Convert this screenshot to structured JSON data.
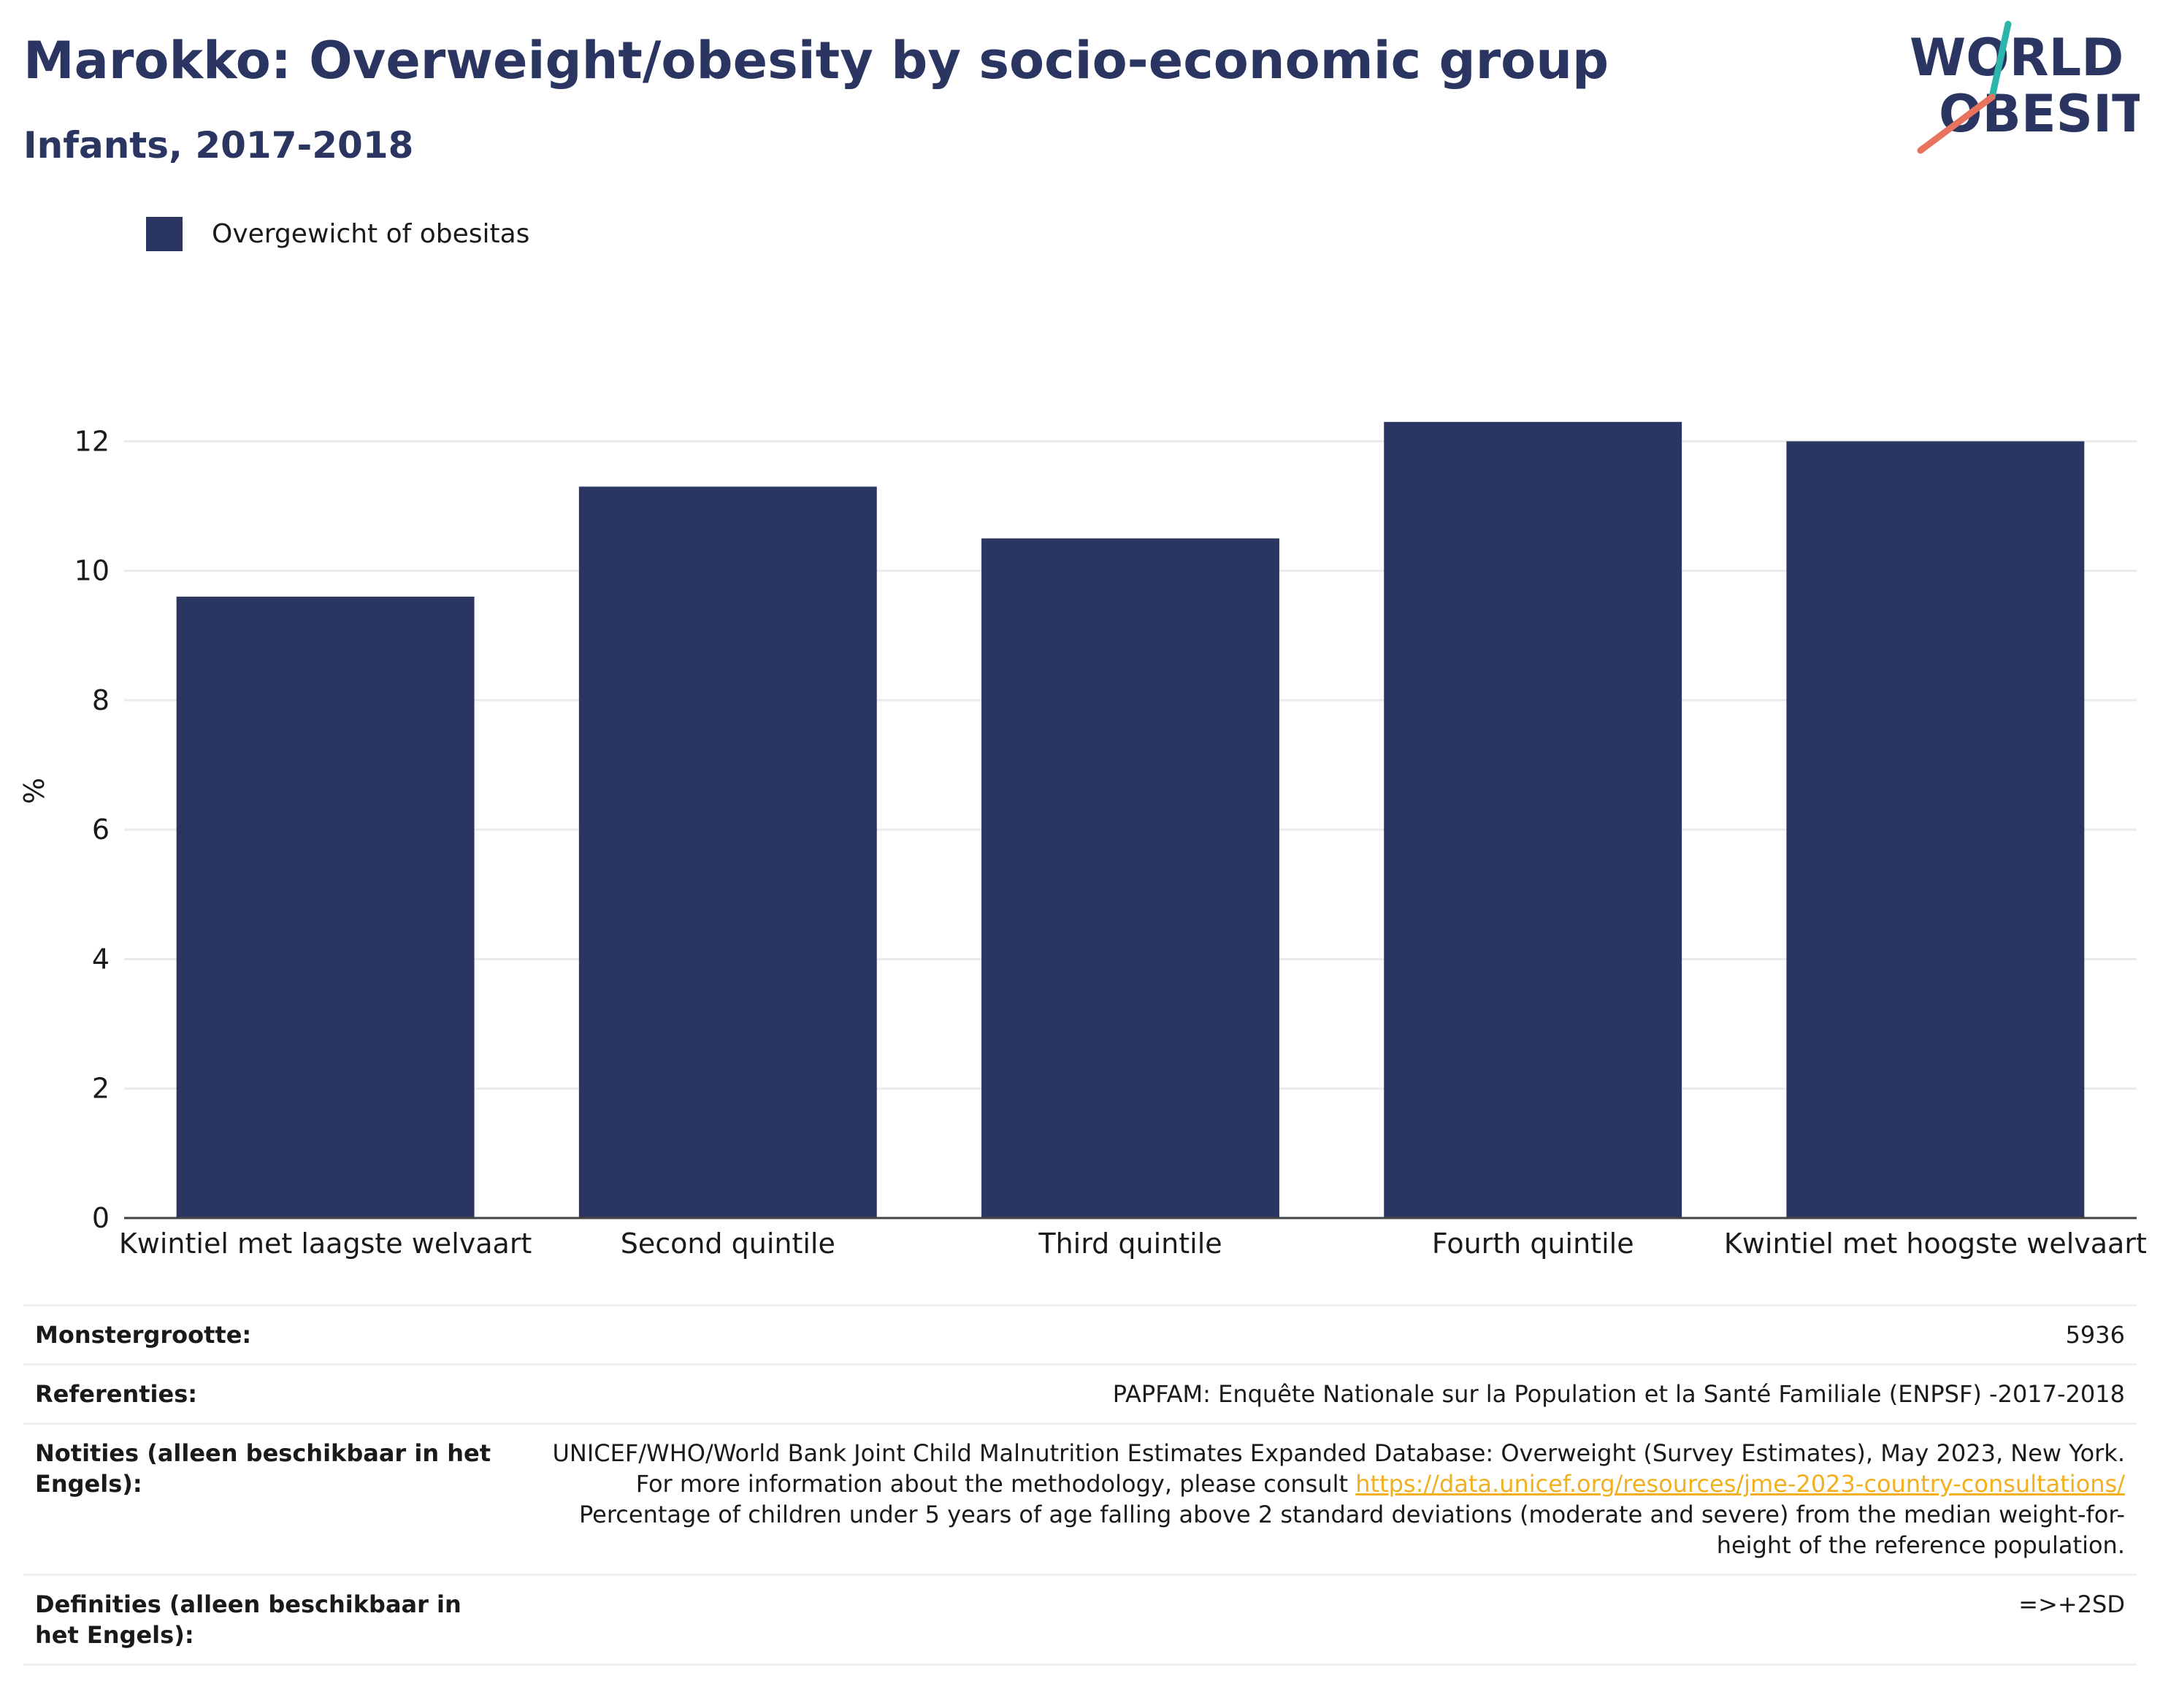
{
  "header": {
    "title": "Marokko: Overweight/obesity by socio-economic group",
    "subtitle": "Infants, 2017-2018"
  },
  "logo": {
    "line1": "WORLD",
    "line2": "OBESITY"
  },
  "colors": {
    "bar": "#2a3561",
    "title": "#2a3561",
    "link": "#f2b01e",
    "logo_teal": "#2bb5ad",
    "logo_coral": "#e8735f"
  },
  "chart_data": {
    "type": "bar",
    "categories": [
      "Kwintiel met laagste welvaart",
      "Second quintile",
      "Third quintile",
      "Fourth quintile",
      "Kwintiel met hoogste welvaart"
    ],
    "series": [
      {
        "name": "Overgewicht of obesitas",
        "values": [
          9.6,
          11.3,
          10.5,
          12.3,
          12.0
        ]
      }
    ],
    "ylabel": "%",
    "xlabel": "",
    "ylim": [
      0,
      13.2
    ],
    "yticks": [
      0,
      2,
      4,
      6,
      8,
      10,
      12
    ],
    "grid": true,
    "legend_position": "top-left"
  },
  "info": {
    "sample_size_label": "Monstergrootte:",
    "sample_size_value": "5936",
    "references_label": "Referenties:",
    "references_value": "PAPFAM: Enquête Nationale sur la Population et la Santé Familiale (ENPSF) -2017-2018",
    "notes_label": "Notities (alleen beschikbaar in het Engels):",
    "notes_text_1": "UNICEF/WHO/World Bank Joint Child Malnutrition Estimates Expanded Database: Overweight (Survey Estimates), May 2023, New York. For more information about the methodology, please consult ",
    "notes_link": "https://data.unicef.org/resources/jme-2023-country-consultations/",
    "notes_text_2": " Percentage of children under 5 years of age falling above 2 standard deviations (moderate and severe) from the median weight-for-height of the reference population.",
    "definitions_label": "Definities (alleen beschikbaar in het Engels):",
    "definitions_value": "=>+2SD"
  }
}
